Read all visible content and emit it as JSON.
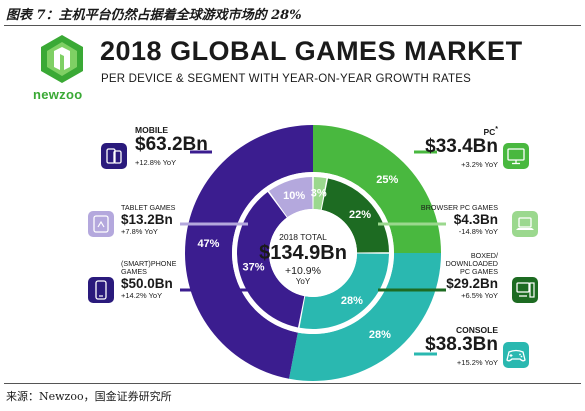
{
  "caption": {
    "top": "图表 7：主机平台仍然占据着全球游戏市场的 28%",
    "source": "来源：Newzoo，国金证券研究所"
  },
  "logo": {
    "text": "newzoo"
  },
  "header": {
    "title": "2018 GLOBAL GAMES MARKET",
    "subtitle": "PER DEVICE & SEGMENT WITH YEAR-ON-YEAR GROWTH RATES"
  },
  "colors": {
    "mobile": "#3b1d8f",
    "mobile_light": "#6b52b8",
    "tablet": "#b4a8dd",
    "pc": "#49b83f",
    "pc_dark": "#1d6b22",
    "pc_light": "#9bd88e",
    "console": "#2ab8b0",
    "icon_blue": "#2a1a7c"
  },
  "center": {
    "title": "2018 TOTAL",
    "value": "$134.9Bn",
    "growth": "+10.9%",
    "yoy": "YoY"
  },
  "labels": {
    "mobile": {
      "name": "MOBILE",
      "value": "$63.2Bn",
      "yoy": "+12.8% YoY"
    },
    "tablet": {
      "name": "TABLET GAMES",
      "value": "$13.2Bn",
      "yoy": "+7.8% YoY"
    },
    "phone": {
      "name1": "(SMART)PHONE",
      "name2": "GAMES",
      "value": "$50.0Bn",
      "yoy": "+14.2% YoY"
    },
    "pc": {
      "name": "PC",
      "star": "*",
      "value": "$33.4Bn",
      "yoy": "+3.2% YoY"
    },
    "browser": {
      "name": "BROWSER PC GAMES",
      "value": "$4.3Bn",
      "yoy": "-14.8% YoY"
    },
    "boxed": {
      "name1": "BOXED/",
      "name2": "DOWNLOADED",
      "name3": "PC GAMES",
      "value": "$29.2Bn",
      "yoy": "+6.5% YoY"
    },
    "console": {
      "name": "CONSOLE",
      "value": "$38.3Bn",
      "yoy": "+15.2% YoY"
    }
  },
  "chart_data": {
    "type": "pie",
    "title": "2018 GLOBAL GAMES MARKET",
    "subtitle": "PER DEVICE & SEGMENT WITH YEAR-ON-YEAR GROWTH RATES",
    "total": {
      "label": "2018 TOTAL",
      "value": 134.9,
      "growth": "+10.9%"
    },
    "outer_ring": [
      {
        "name": "PC",
        "share": 25,
        "label": "25%",
        "value": 33.4,
        "yoy": "+3.2%"
      },
      {
        "name": "CONSOLE",
        "share": 28,
        "label": "28%",
        "value": 38.3,
        "yoy": "+15.2%"
      },
      {
        "name": "MOBILE",
        "share": 47,
        "label": "47%",
        "value": 63.2,
        "yoy": "+12.8%"
      }
    ],
    "inner_ring": [
      {
        "name": "BROWSER PC GAMES",
        "share": 3,
        "label": "3%",
        "value": 4.3,
        "yoy": "-14.8%"
      },
      {
        "name": "BOXED/DOWNLOADED PC GAMES",
        "share": 22,
        "label": "22%",
        "value": 29.2,
        "yoy": "+6.5%"
      },
      {
        "name": "CONSOLE",
        "share": 28,
        "label": "28%",
        "value": 38.3,
        "yoy": "+15.2%"
      },
      {
        "name": "(SMART)PHONE GAMES",
        "share": 37,
        "label": "37%",
        "value": 50.0,
        "yoy": "+14.2%"
      },
      {
        "name": "TABLET GAMES",
        "share": 10,
        "label": "10%",
        "value": 13.2,
        "yoy": "+7.8%"
      }
    ]
  }
}
